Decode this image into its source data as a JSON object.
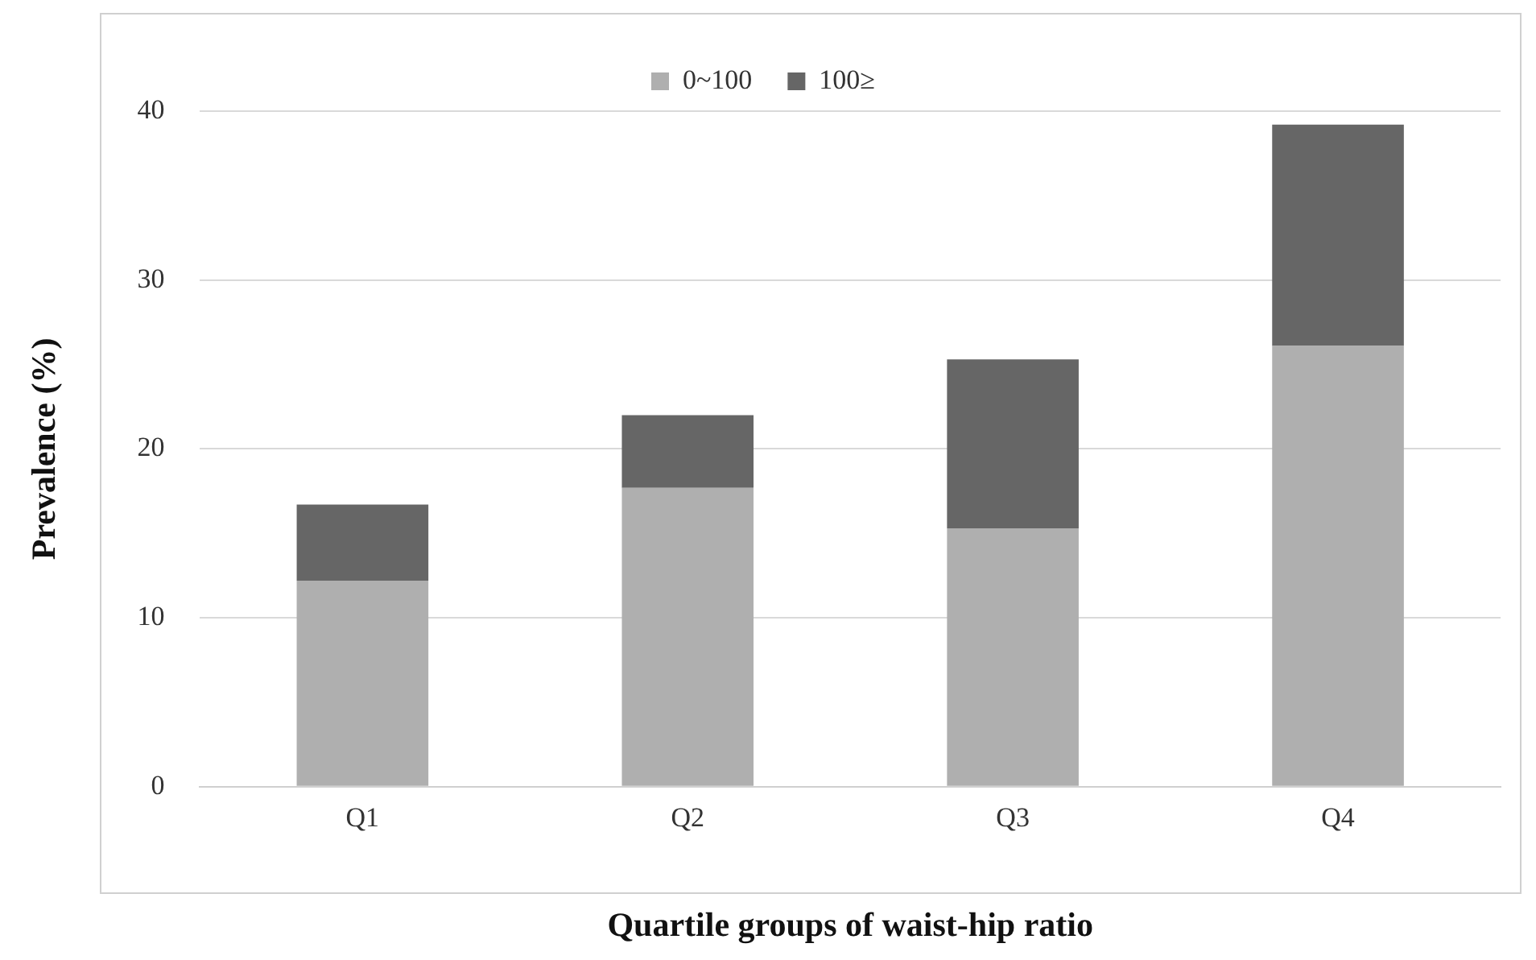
{
  "chart_data": {
    "type": "bar",
    "xlabel": "Quartile groups of waist-hip ratio",
    "ylabel": "Prevalence (%)",
    "categories": [
      "Q1",
      "Q2",
      "Q3",
      "Q4"
    ],
    "series": [
      {
        "name": "0~100",
        "color": "#afafaf",
        "values": [
          12.2,
          17.7,
          15.3,
          26.1
        ]
      },
      {
        "name": "100≥",
        "color": "#666666",
        "values": [
          4.5,
          4.3,
          10.0,
          13.1
        ]
      }
    ],
    "stacked": true,
    "ylim": [
      0,
      40
    ],
    "yticks": [
      0,
      10,
      20,
      30,
      40
    ],
    "grid": "y",
    "legend": "top"
  }
}
